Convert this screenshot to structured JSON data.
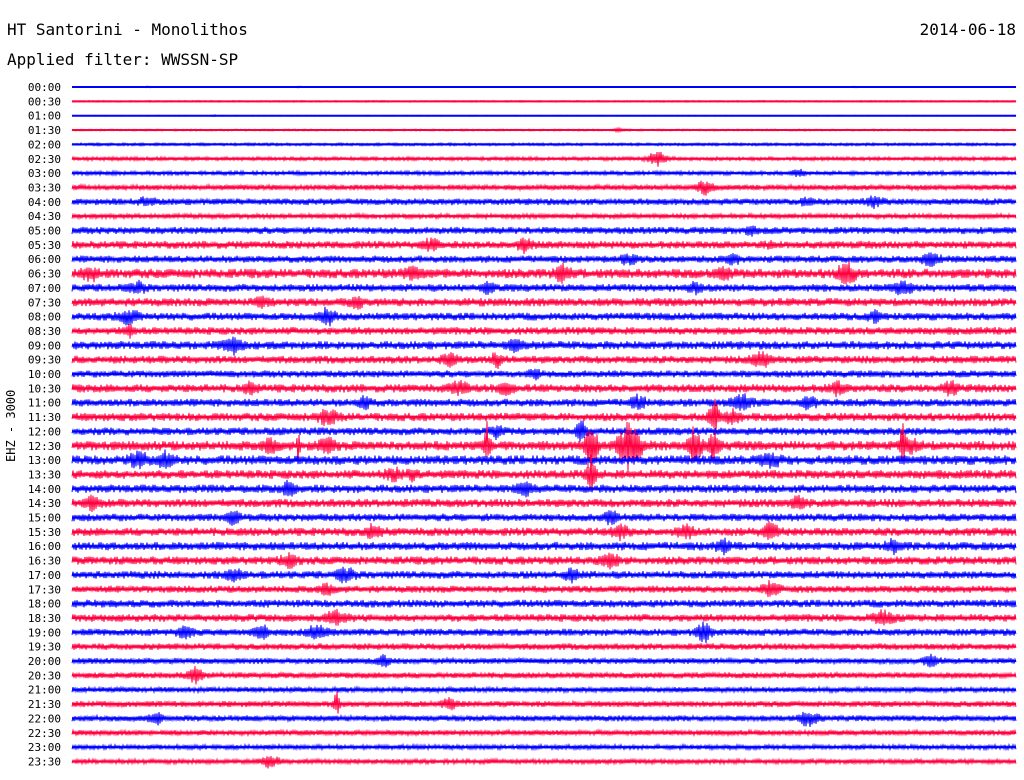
{
  "header": {
    "station": "HT Santorini - Monolithos",
    "date": "2014-06-18",
    "filter": "Applied filter: WWSSN-SP"
  },
  "chart_data": {
    "type": "line",
    "title": "HT Santorini - Monolithos",
    "ylabel": "EHZ - 3000",
    "colors": {
      "odd_hour": "#0000ff",
      "half_hour": "#ff0040"
    },
    "rows": [
      "00:00",
      "00:30",
      "01:00",
      "01:30",
      "02:00",
      "02:30",
      "03:00",
      "03:30",
      "04:00",
      "04:30",
      "05:00",
      "05:30",
      "06:00",
      "06:30",
      "07:00",
      "07:30",
      "08:00",
      "08:30",
      "09:00",
      "09:30",
      "10:00",
      "10:30",
      "11:00",
      "11:30",
      "12:00",
      "12:30",
      "13:00",
      "13:30",
      "14:00",
      "14:30",
      "15:00",
      "15:30",
      "16:00",
      "16:30",
      "17:00",
      "17:30",
      "18:00",
      "18:30",
      "19:00",
      "19:30",
      "20:00",
      "20:30",
      "21:00",
      "21:30",
      "22:00",
      "22:30",
      "23:00",
      "23:30"
    ],
    "noise": [
      0.2,
      0.5,
      0.3,
      0.6,
      0.9,
      1.2,
      1.3,
      1.8,
      2.2,
      1.6,
      2.4,
      2.6,
      2.4,
      3.2,
      2.6,
      2.8,
      2.6,
      2.6,
      2.8,
      2.6,
      2.4,
      2.8,
      2.6,
      2.8,
      2.6,
      3.2,
      3.2,
      3.0,
      2.8,
      2.8,
      2.6,
      2.8,
      2.8,
      2.8,
      2.6,
      2.4,
      2.6,
      2.6,
      2.4,
      2.2,
      2.0,
      2.0,
      1.8,
      2.0,
      2.0,
      1.8,
      1.6,
      1.6
    ],
    "events": [
      [
        [
          0.08,
          0.5,
          3
        ],
        [
          0.24,
          0.5,
          3
        ],
        [
          0.83,
          0.5,
          3
        ]
      ],
      [],
      [
        [
          0.15,
          0.5,
          2
        ]
      ],
      [
        [
          0.58,
          1,
          4
        ]
      ],
      [],
      [
        [
          0.62,
          6,
          6
        ]
      ],
      [
        [
          0.77,
          3,
          5
        ]
      ],
      [
        [
          0.67,
          6,
          5
        ]
      ],
      [
        [
          0.08,
          3,
          6
        ],
        [
          0.78,
          3,
          5
        ],
        [
          0.85,
          4,
          6
        ]
      ],
      [],
      [
        [
          0.72,
          3,
          5
        ]
      ],
      [
        [
          0.38,
          4,
          6
        ],
        [
          0.48,
          5,
          5
        ],
        [
          0.74,
          2,
          3
        ]
      ],
      [
        [
          0.59,
          4,
          5
        ],
        [
          0.7,
          5,
          4
        ],
        [
          0.91,
          5,
          6
        ]
      ],
      [
        [
          0.02,
          4,
          6
        ],
        [
          0.36,
          5,
          5
        ],
        [
          0.52,
          6,
          5
        ],
        [
          0.69,
          4,
          5
        ],
        [
          0.82,
          8,
          6
        ]
      ],
      [
        [
          0.07,
          4,
          5
        ],
        [
          0.44,
          5,
          4
        ],
        [
          0.66,
          4,
          5
        ],
        [
          0.88,
          5,
          6
        ]
      ],
      [
        [
          0.2,
          4,
          5
        ],
        [
          0.3,
          4,
          5
        ]
      ],
      [
        [
          0.06,
          5,
          7
        ],
        [
          0.27,
          6,
          6
        ],
        [
          0.85,
          4,
          4
        ]
      ],
      [
        [
          0.06,
          4,
          4
        ]
      ],
      [
        [
          0.17,
          6,
          6
        ],
        [
          0.47,
          4,
          5
        ]
      ],
      [
        [
          0.4,
          5,
          5
        ],
        [
          0.45,
          5,
          4
        ],
        [
          0.73,
          5,
          7
        ]
      ],
      [
        [
          0.49,
          4,
          4
        ]
      ],
      [
        [
          0.19,
          4,
          5
        ],
        [
          0.41,
          5,
          7
        ],
        [
          0.46,
          5,
          5
        ],
        [
          0.81,
          5,
          5
        ],
        [
          0.93,
          5,
          5
        ]
      ],
      [
        [
          0.31,
          5,
          4
        ],
        [
          0.6,
          5,
          5
        ],
        [
          0.71,
          6,
          7
        ],
        [
          0.78,
          5,
          5
        ]
      ],
      [
        [
          0.27,
          5,
          7
        ],
        [
          0.68,
          16,
          3
        ],
        [
          0.7,
          5,
          5
        ]
      ],
      [
        [
          0.45,
          5,
          4
        ],
        [
          0.54,
          8,
          4
        ]
      ],
      [
        [
          0.21,
          5,
          5
        ],
        [
          0.24,
          16,
          1
        ],
        [
          0.27,
          5,
          6
        ],
        [
          0.44,
          18,
          2
        ],
        [
          0.55,
          22,
          4
        ],
        [
          0.59,
          18,
          8
        ],
        [
          0.66,
          18,
          4
        ],
        [
          0.68,
          14,
          3
        ],
        [
          0.88,
          18,
          2
        ],
        [
          0.89,
          5,
          5
        ]
      ],
      [
        [
          0.07,
          6,
          6
        ],
        [
          0.1,
          7,
          5
        ],
        [
          0.74,
          5,
          6
        ]
      ],
      [
        [
          0.34,
          5,
          5
        ],
        [
          0.36,
          4,
          4
        ],
        [
          0.55,
          14,
          3
        ]
      ],
      [
        [
          0.23,
          5,
          5
        ],
        [
          0.48,
          5,
          5
        ]
      ],
      [
        [
          0.02,
          5,
          6
        ],
        [
          0.77,
          5,
          5
        ]
      ],
      [
        [
          0.17,
          5,
          5
        ],
        [
          0.57,
          5,
          5
        ]
      ],
      [
        [
          0.32,
          5,
          5
        ],
        [
          0.58,
          5,
          6
        ],
        [
          0.65,
          5,
          5
        ],
        [
          0.74,
          8,
          5
        ]
      ],
      [
        [
          0.69,
          5,
          5
        ],
        [
          0.87,
          5,
          5
        ]
      ],
      [
        [
          0.23,
          5,
          6
        ],
        [
          0.57,
          5,
          6
        ]
      ],
      [
        [
          0.17,
          5,
          6
        ],
        [
          0.29,
          5,
          6
        ],
        [
          0.53,
          5,
          5
        ]
      ],
      [
        [
          0.27,
          4,
          5
        ],
        [
          0.74,
          5,
          6
        ]
      ],
      [],
      [
        [
          0.28,
          5,
          7
        ],
        [
          0.86,
          5,
          7
        ]
      ],
      [
        [
          0.12,
          5,
          5
        ],
        [
          0.2,
          5,
          5
        ],
        [
          0.26,
          5,
          7
        ],
        [
          0.67,
          8,
          5
        ]
      ],
      [],
      [
        [
          0.33,
          4,
          5
        ],
        [
          0.91,
          4,
          6
        ]
      ],
      [
        [
          0.13,
          6,
          5
        ]
      ],
      [],
      [
        [
          0.28,
          9,
          2
        ],
        [
          0.4,
          4,
          5
        ]
      ],
      [
        [
          0.09,
          5,
          5
        ],
        [
          0.78,
          6,
          6
        ]
      ],
      [],
      [],
      [
        [
          0.21,
          5,
          6
        ]
      ]
    ]
  }
}
